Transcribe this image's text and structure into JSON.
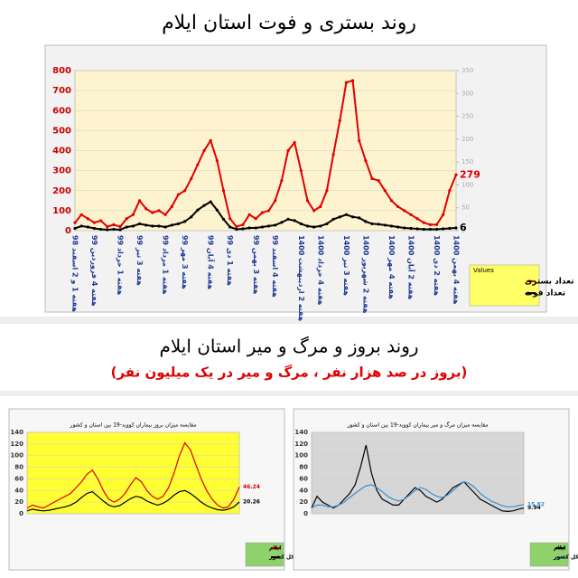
{
  "headings": {
    "top": "روند بستری و فوت استان ایلام",
    "middle": "روند بروز و مرگ و میر استان ایلام",
    "subtitle": "(بروز در صد هزار نفر ، مرگ و میر در یک میلیون نفر)"
  },
  "chart_data": [
    {
      "type": "line",
      "legend_title": "Values",
      "ylim": [
        0,
        800
      ],
      "yticks": [
        0,
        100,
        200,
        300,
        400,
        500,
        600,
        700,
        800
      ],
      "y2lim": [
        0,
        350
      ],
      "y2ticks": [
        0,
        50,
        100,
        150,
        200,
        250,
        300,
        350
      ],
      "categories": [
        "هفته 1 و 2 اسفند 98",
        null,
        null,
        "هفته 4 فروردین 99",
        null,
        null,
        null,
        "هفته 1 خرداد 99",
        null,
        null,
        "هفته 3 تیر 99",
        null,
        null,
        null,
        "هفته 1 مرداد 99",
        null,
        null,
        "هفته 3 مهر 99",
        null,
        null,
        null,
        "هفته 4 آبان 99",
        null,
        null,
        "هفته 1 دی 99",
        null,
        null,
        null,
        "هفته 3 بهمن 99",
        null,
        null,
        "هفته 4 اسفند 99",
        null,
        null,
        null,
        "هفته 2 اردیبهشت 1400",
        null,
        null,
        "هفته 4 خرداد 1400",
        null,
        null,
        null,
        "هفته 3 تیر 1400",
        null,
        null,
        "هفته 2 شهریور 1400",
        null,
        null,
        null,
        "هفته 4 مهر 1400",
        null,
        null,
        "هفته 2 آبان 1400",
        null,
        null,
        null,
        "هفته 2 دی 1400",
        null,
        null,
        "هفته 4 بهمن 1400"
      ],
      "series": [
        {
          "name": "تعداد بستری",
          "color": "#e00000",
          "axis": "y",
          "values": [
            40,
            80,
            60,
            40,
            50,
            20,
            30,
            20,
            60,
            80,
            150,
            110,
            90,
            100,
            80,
            120,
            180,
            200,
            260,
            330,
            400,
            450,
            350,
            200,
            60,
            20,
            30,
            80,
            60,
            90,
            100,
            150,
            250,
            400,
            440,
            300,
            150,
            100,
            120,
            200,
            380,
            550,
            740,
            750,
            450,
            350,
            260,
            250,
            200,
            150,
            120,
            100,
            80,
            60,
            40,
            30,
            30,
            80,
            200,
            279
          ]
        },
        {
          "name": "تعداد فوت",
          "color": "#000000",
          "axis": "y2",
          "values": [
            5,
            10,
            8,
            5,
            3,
            2,
            3,
            2,
            8,
            10,
            15,
            12,
            10,
            10,
            8,
            12,
            15,
            20,
            30,
            45,
            55,
            63,
            45,
            25,
            8,
            3,
            4,
            6,
            6,
            8,
            10,
            12,
            18,
            25,
            22,
            15,
            10,
            8,
            10,
            15,
            25,
            30,
            35,
            30,
            28,
            20,
            15,
            14,
            12,
            10,
            8,
            6,
            5,
            4,
            3,
            3,
            3,
            4,
            5,
            6
          ]
        }
      ]
    },
    {
      "type": "line",
      "title": "مقایسه میزان بروز بیماران کووید-19 بین استان و کشور",
      "ylim": [
        0,
        140
      ],
      "yticks": [
        0,
        20,
        40,
        60,
        80,
        100,
        120,
        140
      ],
      "series": [
        {
          "name": "ایلام",
          "color": "#e00000",
          "values": [
            10,
            15,
            12,
            10,
            15,
            20,
            25,
            30,
            35,
            45,
            55,
            68,
            75,
            60,
            40,
            25,
            20,
            25,
            35,
            50,
            62,
            55,
            40,
            30,
            25,
            30,
            45,
            70,
            100,
            122,
            110,
            85,
            60,
            40,
            25,
            15,
            10,
            12,
            25,
            46.24
          ]
        },
        {
          "name": "کل کشور",
          "color": "#000000",
          "values": [
            5,
            8,
            6,
            5,
            6,
            8,
            10,
            12,
            15,
            20,
            28,
            35,
            38,
            30,
            22,
            15,
            12,
            14,
            20,
            26,
            30,
            28,
            22,
            18,
            15,
            18,
            24,
            32,
            38,
            40,
            35,
            28,
            20,
            14,
            10,
            7,
            6,
            8,
            12,
            20.26
          ]
        }
      ]
    },
    {
      "type": "line",
      "title": "مقایسه میزان مرگ و میر بیماران کووید-19 بین استان و کشور",
      "ylim": [
        0,
        140
      ],
      "yticks": [
        0,
        20,
        40,
        60,
        80,
        100,
        120,
        140
      ],
      "series": [
        {
          "name": "ایلام",
          "color": "#000000",
          "values": [
            10,
            30,
            20,
            15,
            10,
            15,
            25,
            35,
            50,
            80,
            118,
            70,
            40,
            25,
            20,
            15,
            15,
            25,
            35,
            45,
            40,
            30,
            25,
            20,
            25,
            35,
            45,
            50,
            55,
            45,
            35,
            25,
            20,
            15,
            10,
            5,
            4,
            5,
            8,
            9.94
          ]
        },
        {
          "name": "کل کشور",
          "color": "#3a8fd0",
          "values": [
            10,
            15,
            15,
            12,
            12,
            15,
            20,
            28,
            35,
            42,
            48,
            50,
            45,
            38,
            30,
            25,
            22,
            25,
            32,
            40,
            45,
            42,
            35,
            30,
            28,
            32,
            40,
            48,
            55,
            52,
            45,
            35,
            28,
            22,
            18,
            14,
            12,
            12,
            14,
            15.82
          ]
        }
      ]
    }
  ]
}
